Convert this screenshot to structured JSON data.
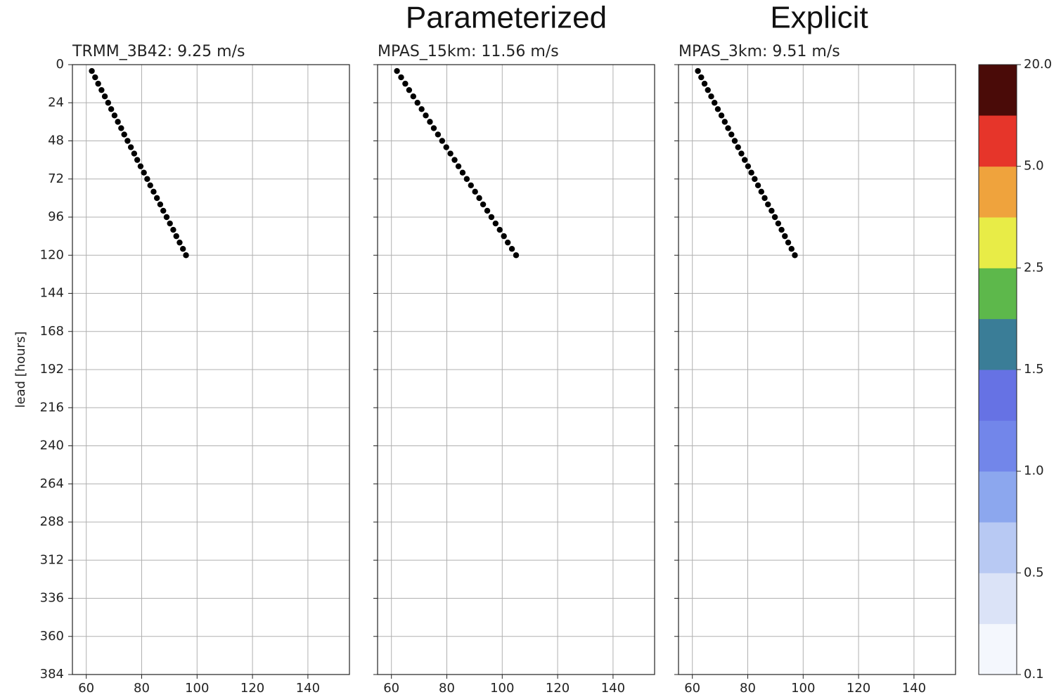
{
  "headers": [
    "Parameterized",
    "Explicit"
  ],
  "chart_data": [
    {
      "type": "scatter",
      "title": "TRMM_3B42: 9.25 m/s",
      "ylabel": "lead [hours]",
      "xlim": [
        55,
        155
      ],
      "ylim": [
        384,
        0
      ],
      "xticks": [
        60,
        80,
        100,
        120,
        140
      ],
      "yticks": [
        0,
        24,
        48,
        72,
        96,
        120,
        144,
        168,
        192,
        216,
        240,
        264,
        288,
        312,
        336,
        360,
        384
      ],
      "grid": true,
      "color": "#000000",
      "x": [
        62,
        63.2,
        64.3,
        65.5,
        66.7,
        67.9,
        69,
        70.2,
        71.4,
        72.6,
        73.7,
        74.9,
        76.1,
        77.3,
        78.4,
        79.6,
        80.8,
        82,
        83.1,
        84.3,
        85.5,
        86.7,
        87.8,
        89,
        90.2,
        91.4,
        92.5,
        93.7,
        94.9,
        96
      ],
      "values": [
        4,
        8,
        12,
        16,
        20,
        24,
        28,
        32,
        36,
        40,
        44,
        48,
        52,
        56,
        60,
        64,
        68,
        72,
        76,
        80,
        84,
        88,
        92,
        96,
        100,
        104,
        108,
        112,
        116,
        120
      ]
    },
    {
      "type": "scatter",
      "title": "MPAS_15km: 11.56 m/s",
      "xlim": [
        55,
        155
      ],
      "ylim": [
        384,
        0
      ],
      "xticks": [
        60,
        80,
        100,
        120,
        140
      ],
      "yticks": [
        0,
        24,
        48,
        72,
        96,
        120,
        144,
        168,
        192,
        216,
        240,
        264,
        288,
        312,
        336,
        360,
        384
      ],
      "grid": true,
      "color": "#000000",
      "x": [
        62,
        63.5,
        65,
        66.4,
        67.9,
        69.4,
        70.9,
        72.4,
        73.9,
        75.3,
        76.8,
        78.3,
        79.8,
        81.3,
        82.8,
        84.2,
        85.7,
        87.2,
        88.7,
        90.2,
        91.7,
        93.1,
        94.6,
        96.1,
        97.6,
        99.1,
        100.6,
        102,
        103.5,
        105
      ],
      "values": [
        4,
        8,
        12,
        16,
        20,
        24,
        28,
        32,
        36,
        40,
        44,
        48,
        52,
        56,
        60,
        64,
        68,
        72,
        76,
        80,
        84,
        88,
        92,
        96,
        100,
        104,
        108,
        112,
        116,
        120
      ]
    },
    {
      "type": "scatter",
      "title": "MPAS_3km: 9.51 m/s",
      "xlim": [
        55,
        155
      ],
      "ylim": [
        384,
        0
      ],
      "xticks": [
        60,
        80,
        100,
        120,
        140
      ],
      "yticks": [
        0,
        24,
        48,
        72,
        96,
        120,
        144,
        168,
        192,
        216,
        240,
        264,
        288,
        312,
        336,
        360,
        384
      ],
      "grid": true,
      "color": "#000000",
      "x": [
        62,
        63.2,
        64.4,
        65.6,
        66.8,
        68,
        69.2,
        70.5,
        71.7,
        72.9,
        74.1,
        75.3,
        76.5,
        77.7,
        78.9,
        80.1,
        81.3,
        82.5,
        83.7,
        84.9,
        86.1,
        87.3,
        88.6,
        89.8,
        91,
        92.2,
        93.4,
        94.6,
        95.8,
        97
      ],
      "values": [
        4,
        8,
        12,
        16,
        20,
        24,
        28,
        32,
        36,
        40,
        44,
        48,
        52,
        56,
        60,
        64,
        68,
        72,
        76,
        80,
        84,
        88,
        92,
        96,
        100,
        104,
        108,
        112,
        116,
        120
      ]
    }
  ],
  "colorbar": {
    "colors": [
      "#f4f7fd",
      "#dbe3f7",
      "#b8c9f3",
      "#8ca7ee",
      "#7286ea",
      "#6672e4",
      "#3a7d97",
      "#5db84b",
      "#e8ec47",
      "#efa33d",
      "#e6352a",
      "#ad1f19",
      "#4a0b08"
    ],
    "ticks": [
      0.1,
      0.5,
      {
        "value": 1,
        "label": "1.0"
      },
      1.5,
      2.5,
      {
        "value": 5,
        "label": "5.0"
      },
      {
        "value": 20,
        "label": "20.0"
      }
    ]
  }
}
